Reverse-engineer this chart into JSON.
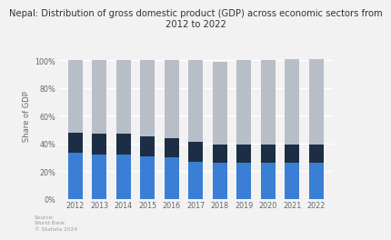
{
  "title": "Nepal: Distribution of gross domestic product (GDP) across economic sectors from\n2012 to 2022",
  "years": [
    "2012",
    "2013",
    "2014",
    "2015",
    "2016",
    "2017",
    "2018",
    "2019",
    "2020",
    "2021",
    "2022"
  ],
  "agriculture": [
    33,
    32,
    32,
    31,
    30,
    27,
    26,
    26,
    26,
    26,
    26
  ],
  "industry": [
    15,
    15,
    15,
    14,
    14,
    14,
    13,
    13,
    13,
    13,
    13
  ],
  "services": [
    52,
    53,
    53,
    55,
    56,
    59,
    60,
    61,
    61,
    62,
    62
  ],
  "color_agriculture": "#3a7fd5",
  "color_industry": "#1b2e45",
  "color_services": "#b8bec8",
  "ylabel": "Share of GDP",
  "ylim": [
    0,
    120
  ],
  "yticks": [
    0,
    20,
    40,
    60,
    80,
    100
  ],
  "ytick_labels": [
    "0%",
    "20%",
    "40%",
    "60%",
    "80%",
    "100%"
  ],
  "source_text": "Source:\nWorld Bank\n© Statista 2024",
  "bg_color": "#f2f2f2",
  "title_fontsize": 7.2,
  "label_fontsize": 6,
  "tick_fontsize": 5.8
}
